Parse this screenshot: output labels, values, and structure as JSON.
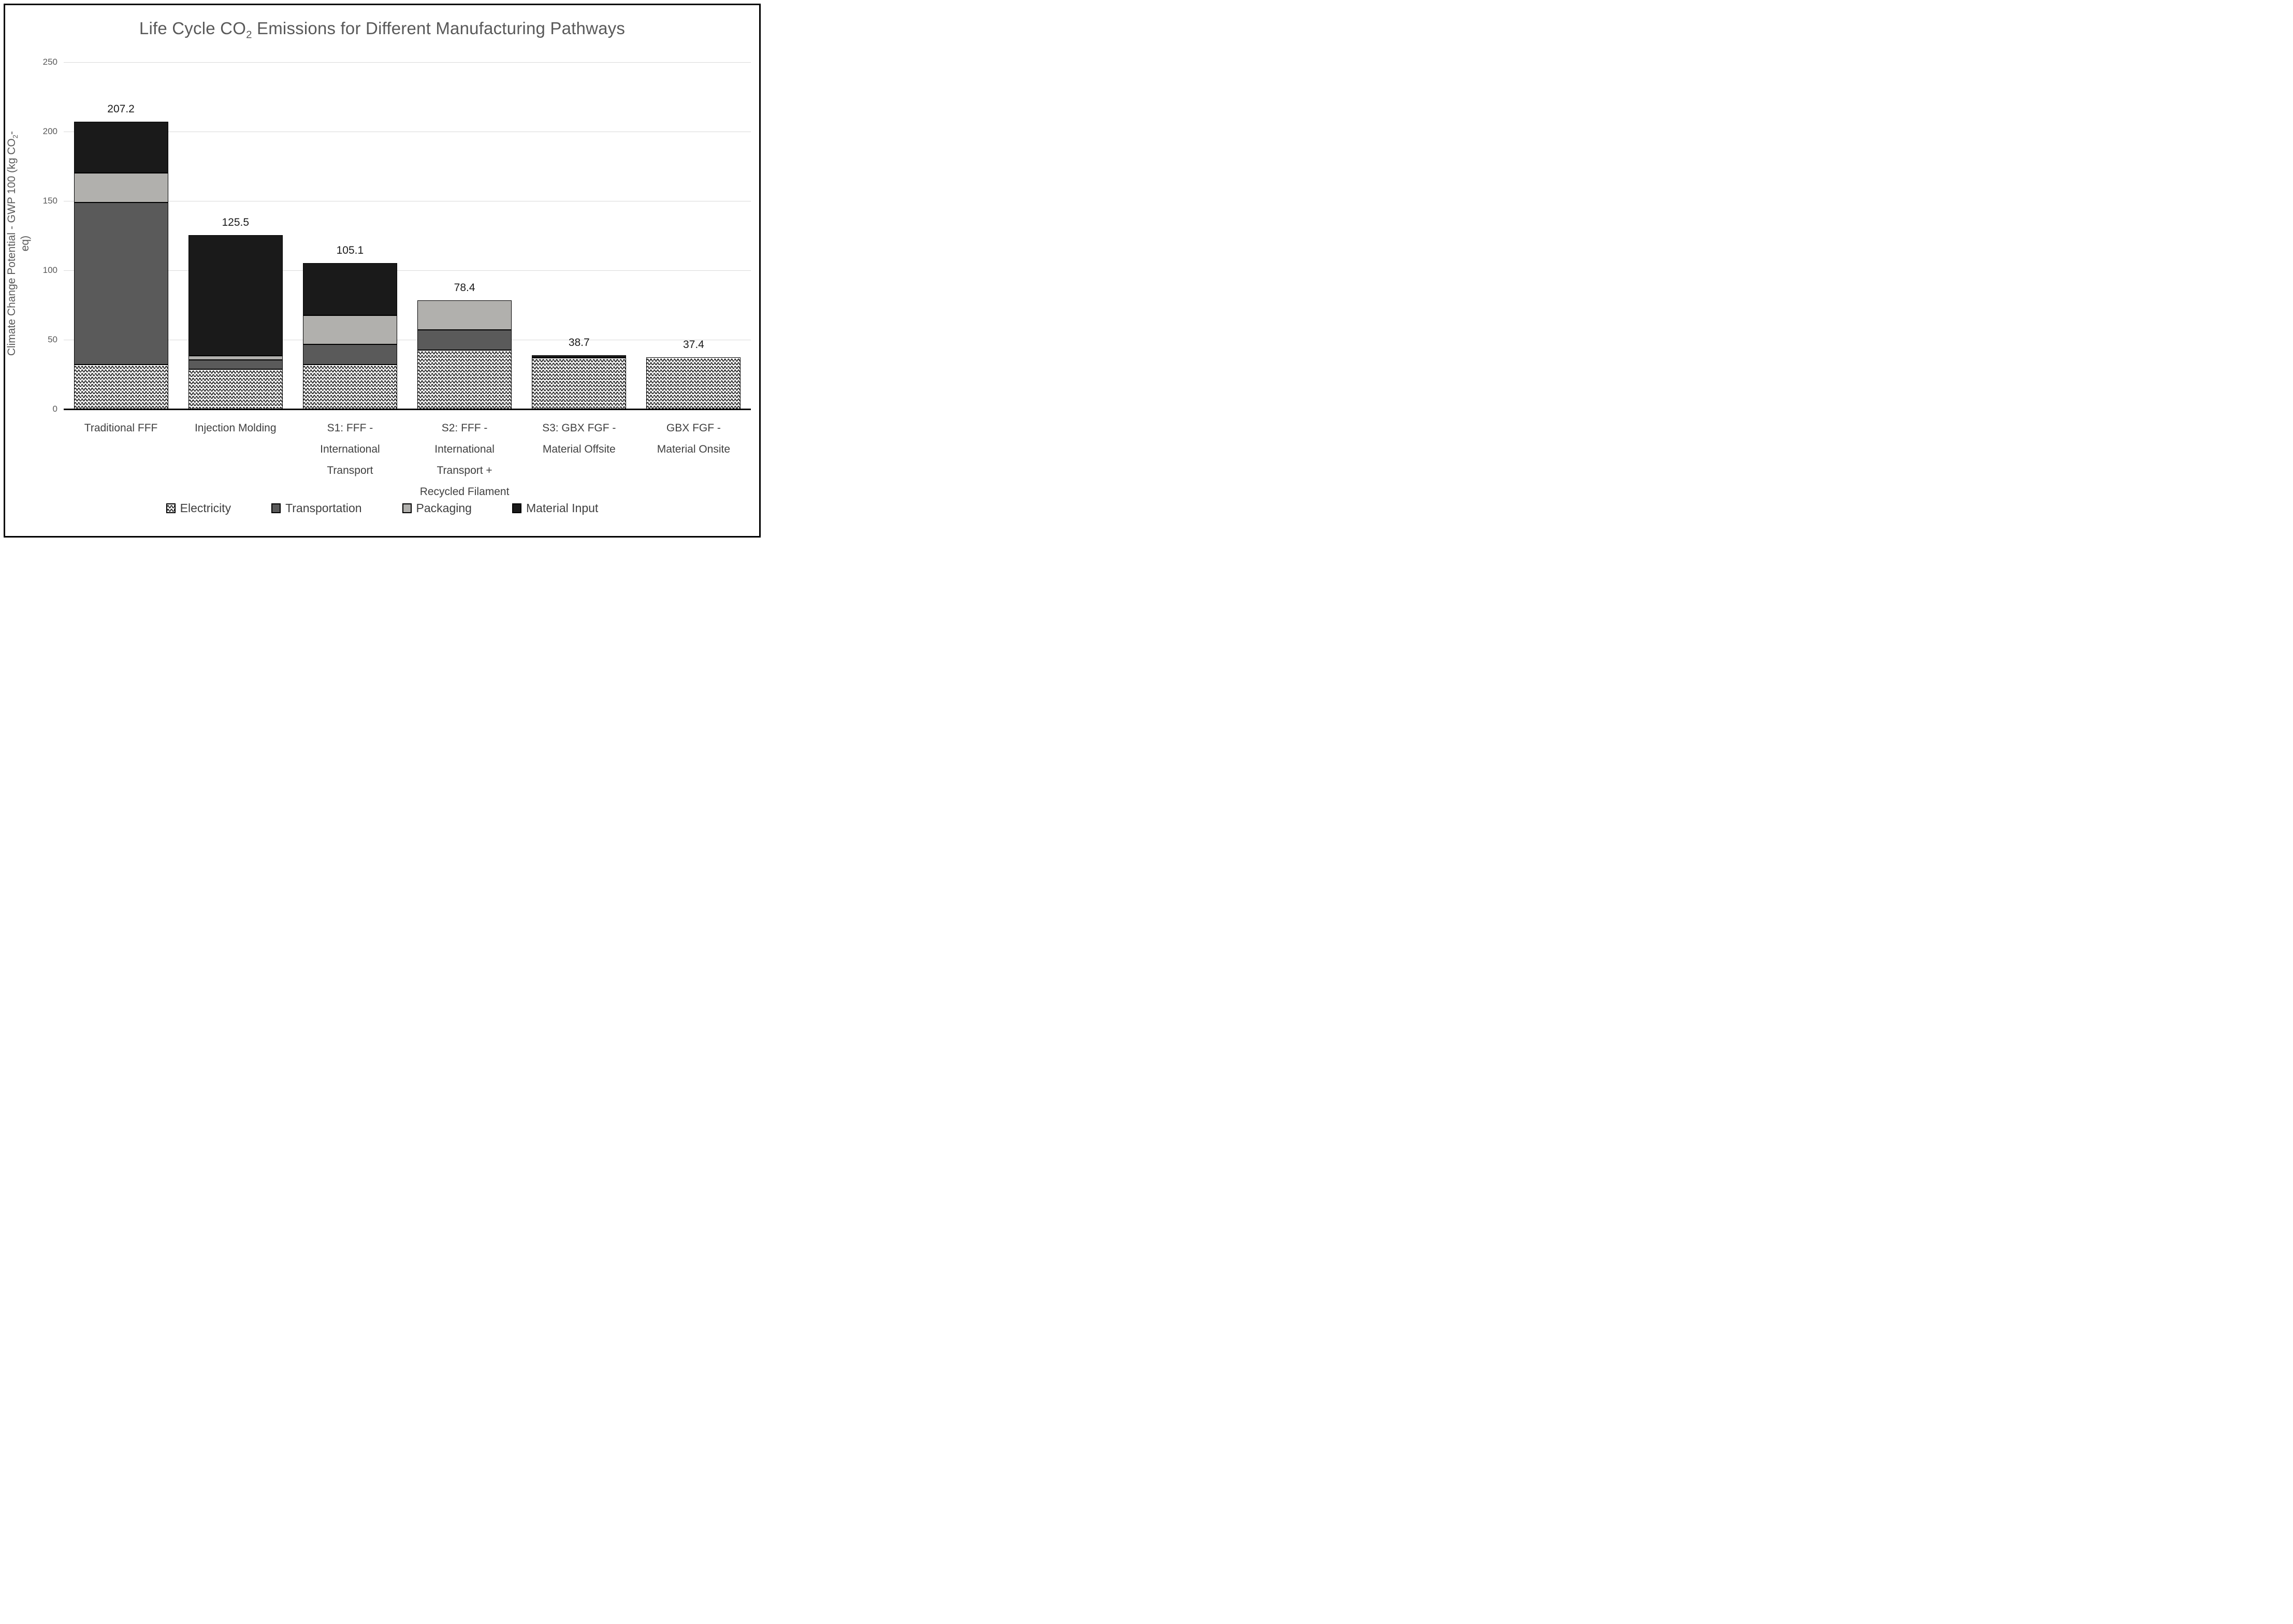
{
  "title": {
    "prefix": "Life Cycle CO",
    "sub": "2",
    "suffix": " Emissions for Different Manufacturing Pathways"
  },
  "y_axis": {
    "label_prefix": "Climate Change Potential - GWP 100 (kg CO",
    "label_sub": "2",
    "label_suffix": "-eq)"
  },
  "chart_data": {
    "type": "bar",
    "stacked": true,
    "title": "Life Cycle CO2 Emissions for Different Manufacturing Pathways",
    "ylabel": "Climate Change Potential - GWP 100 (kg CO2-eq)",
    "xlabel": "",
    "ylim": [
      0,
      250
    ],
    "yticks": [
      0,
      50,
      100,
      150,
      200,
      250
    ],
    "grid": "horizontal",
    "legend_position": "bottom",
    "categories": [
      "Traditional FFF",
      "Injection Molding",
      "S1: FFF -\nInternational\nTransport",
      "S2: FFF -\nInternational\nTransport +\nRecycled Filament",
      "S3: GBX FGF -\nMaterial Offsite",
      "GBX FGF -\nMaterial Onsite"
    ],
    "totals": [
      "207.2",
      "125.5",
      "105.1",
      "78.4",
      "38.7",
      "37.4"
    ],
    "series": [
      {
        "name": "Electricity",
        "fill": "wave-pattern",
        "values": [
          32.0,
          28.9,
          32.0,
          42.5,
          36.9,
          37.4
        ]
      },
      {
        "name": "Transportation",
        "fill": "#5A5A5A",
        "values": [
          117.0,
          6.5,
          14.5,
          14.5,
          0,
          0
        ]
      },
      {
        "name": "Packaging",
        "fill": "#B1B0AD",
        "values": [
          21.0,
          3.2,
          21.0,
          21.4,
          0,
          0
        ]
      },
      {
        "name": "Material Input",
        "fill": "#1A1A1A",
        "values": [
          37.2,
          86.9,
          37.6,
          0,
          1.8,
          0
        ]
      }
    ]
  },
  "legend": {
    "items": [
      {
        "label": "Electricity",
        "fill": "wave-pattern"
      },
      {
        "label": "Transportation",
        "fill": "#5A5A5A"
      },
      {
        "label": "Packaging",
        "fill": "#B1B0AD"
      },
      {
        "label": "Material Input",
        "fill": "#1A1A1A"
      }
    ]
  },
  "colors": {
    "grid": "#D9D9D9",
    "axis": "#000000",
    "title_text": "#595959",
    "tick_text": "#595959",
    "category_text": "#404040",
    "legend_text": "#3F3F3F",
    "data_label_text": "#1A1A1A",
    "segment_border": "#000000",
    "pattern_fg": "#000000",
    "pattern_bg": "#FFFFFF"
  }
}
